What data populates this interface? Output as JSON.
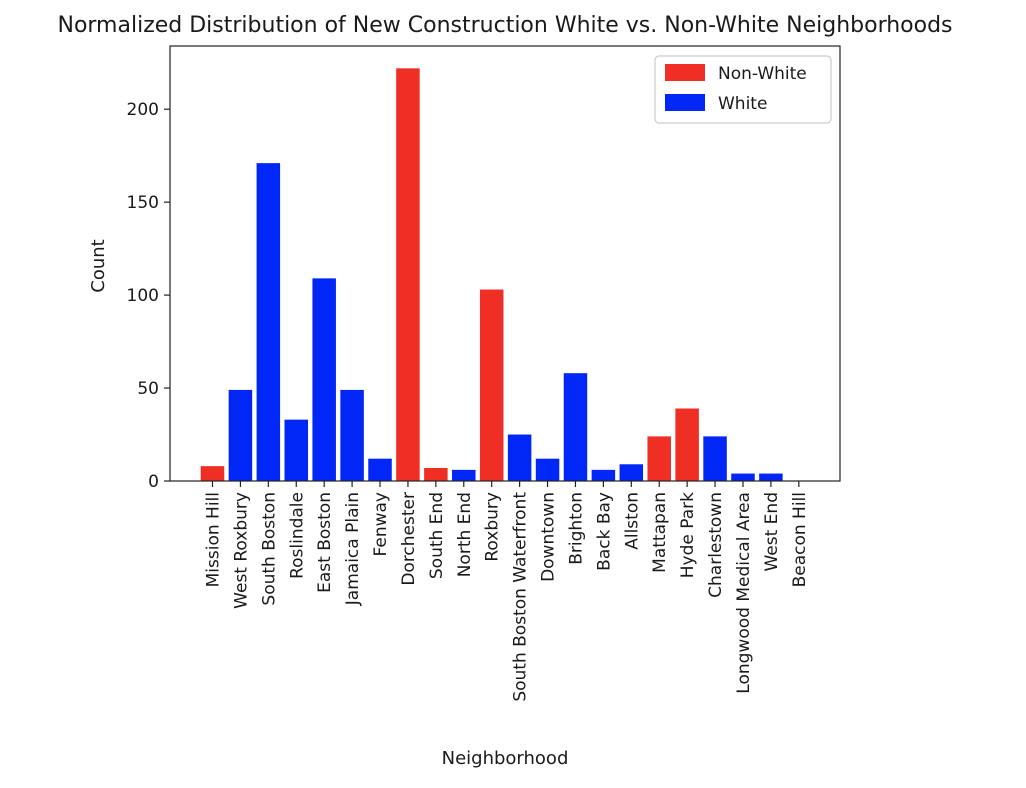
{
  "chart_data": {
    "type": "bar",
    "title": "Normalized Distribution of New Construction White vs. Non-White Neighborhoods",
    "xlabel": "Neighborhood",
    "ylabel": "Count",
    "ylim": [
      0,
      234
    ],
    "yticks": [
      0,
      50,
      100,
      150,
      200
    ],
    "grid": false,
    "legend_position": "top-right",
    "categories": [
      "Mission Hill",
      "West Roxbury",
      "South Boston",
      "Roslindale",
      "East Boston",
      "Jamaica Plain",
      "Fenway",
      "Dorchester",
      "South End",
      "North End",
      "Roxbury",
      "South Boston Waterfront",
      "Downtown",
      "Brighton",
      "Back Bay",
      "Allston",
      "Mattapan",
      "Hyde Park",
      "Charlestown",
      "Longwood Medical Area",
      "West End",
      "Beacon Hill"
    ],
    "values": [
      8,
      49,
      171,
      33,
      109,
      49,
      12,
      222,
      7,
      6,
      103,
      25,
      12,
      58,
      6,
      9,
      24,
      39,
      24,
      4,
      4,
      0
    ],
    "groups": [
      "Non-White",
      "White",
      "White",
      "White",
      "White",
      "White",
      "White",
      "Non-White",
      "Non-White",
      "White",
      "Non-White",
      "White",
      "White",
      "White",
      "White",
      "White",
      "Non-White",
      "Non-White",
      "White",
      "White",
      "White",
      "White"
    ],
    "legend": [
      {
        "name": "Non-White",
        "color": "#ef2f23"
      },
      {
        "name": "White",
        "color": "#0027f5"
      }
    ]
  }
}
